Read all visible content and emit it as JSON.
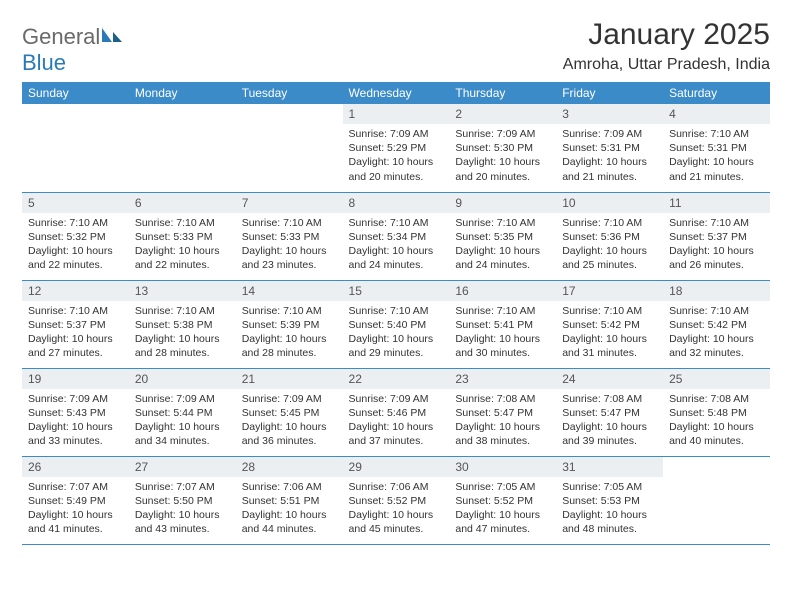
{
  "logo": {
    "general": "General",
    "blue": "Blue"
  },
  "title": "January 2025",
  "location": "Amroha, Uttar Pradesh, India",
  "colors": {
    "header_bg": "#3b8bc8",
    "header_text": "#ffffff",
    "daynum_bg": "#eceff1",
    "border": "#3b8bc8",
    "logo_gray": "#6a6a6a",
    "logo_blue": "#2a7ab9"
  },
  "weekdays": [
    "Sunday",
    "Monday",
    "Tuesday",
    "Wednesday",
    "Thursday",
    "Friday",
    "Saturday"
  ],
  "weeks": [
    [
      {
        "num": "",
        "sunrise": "",
        "sunset": "",
        "daylight": ""
      },
      {
        "num": "",
        "sunrise": "",
        "sunset": "",
        "daylight": ""
      },
      {
        "num": "",
        "sunrise": "",
        "sunset": "",
        "daylight": ""
      },
      {
        "num": "1",
        "sunrise": "Sunrise: 7:09 AM",
        "sunset": "Sunset: 5:29 PM",
        "daylight": "Daylight: 10 hours and 20 minutes."
      },
      {
        "num": "2",
        "sunrise": "Sunrise: 7:09 AM",
        "sunset": "Sunset: 5:30 PM",
        "daylight": "Daylight: 10 hours and 20 minutes."
      },
      {
        "num": "3",
        "sunrise": "Sunrise: 7:09 AM",
        "sunset": "Sunset: 5:31 PM",
        "daylight": "Daylight: 10 hours and 21 minutes."
      },
      {
        "num": "4",
        "sunrise": "Sunrise: 7:10 AM",
        "sunset": "Sunset: 5:31 PM",
        "daylight": "Daylight: 10 hours and 21 minutes."
      }
    ],
    [
      {
        "num": "5",
        "sunrise": "Sunrise: 7:10 AM",
        "sunset": "Sunset: 5:32 PM",
        "daylight": "Daylight: 10 hours and 22 minutes."
      },
      {
        "num": "6",
        "sunrise": "Sunrise: 7:10 AM",
        "sunset": "Sunset: 5:33 PM",
        "daylight": "Daylight: 10 hours and 22 minutes."
      },
      {
        "num": "7",
        "sunrise": "Sunrise: 7:10 AM",
        "sunset": "Sunset: 5:33 PM",
        "daylight": "Daylight: 10 hours and 23 minutes."
      },
      {
        "num": "8",
        "sunrise": "Sunrise: 7:10 AM",
        "sunset": "Sunset: 5:34 PM",
        "daylight": "Daylight: 10 hours and 24 minutes."
      },
      {
        "num": "9",
        "sunrise": "Sunrise: 7:10 AM",
        "sunset": "Sunset: 5:35 PM",
        "daylight": "Daylight: 10 hours and 24 minutes."
      },
      {
        "num": "10",
        "sunrise": "Sunrise: 7:10 AM",
        "sunset": "Sunset: 5:36 PM",
        "daylight": "Daylight: 10 hours and 25 minutes."
      },
      {
        "num": "11",
        "sunrise": "Sunrise: 7:10 AM",
        "sunset": "Sunset: 5:37 PM",
        "daylight": "Daylight: 10 hours and 26 minutes."
      }
    ],
    [
      {
        "num": "12",
        "sunrise": "Sunrise: 7:10 AM",
        "sunset": "Sunset: 5:37 PM",
        "daylight": "Daylight: 10 hours and 27 minutes."
      },
      {
        "num": "13",
        "sunrise": "Sunrise: 7:10 AM",
        "sunset": "Sunset: 5:38 PM",
        "daylight": "Daylight: 10 hours and 28 minutes."
      },
      {
        "num": "14",
        "sunrise": "Sunrise: 7:10 AM",
        "sunset": "Sunset: 5:39 PM",
        "daylight": "Daylight: 10 hours and 28 minutes."
      },
      {
        "num": "15",
        "sunrise": "Sunrise: 7:10 AM",
        "sunset": "Sunset: 5:40 PM",
        "daylight": "Daylight: 10 hours and 29 minutes."
      },
      {
        "num": "16",
        "sunrise": "Sunrise: 7:10 AM",
        "sunset": "Sunset: 5:41 PM",
        "daylight": "Daylight: 10 hours and 30 minutes."
      },
      {
        "num": "17",
        "sunrise": "Sunrise: 7:10 AM",
        "sunset": "Sunset: 5:42 PM",
        "daylight": "Daylight: 10 hours and 31 minutes."
      },
      {
        "num": "18",
        "sunrise": "Sunrise: 7:10 AM",
        "sunset": "Sunset: 5:42 PM",
        "daylight": "Daylight: 10 hours and 32 minutes."
      }
    ],
    [
      {
        "num": "19",
        "sunrise": "Sunrise: 7:09 AM",
        "sunset": "Sunset: 5:43 PM",
        "daylight": "Daylight: 10 hours and 33 minutes."
      },
      {
        "num": "20",
        "sunrise": "Sunrise: 7:09 AM",
        "sunset": "Sunset: 5:44 PM",
        "daylight": "Daylight: 10 hours and 34 minutes."
      },
      {
        "num": "21",
        "sunrise": "Sunrise: 7:09 AM",
        "sunset": "Sunset: 5:45 PM",
        "daylight": "Daylight: 10 hours and 36 minutes."
      },
      {
        "num": "22",
        "sunrise": "Sunrise: 7:09 AM",
        "sunset": "Sunset: 5:46 PM",
        "daylight": "Daylight: 10 hours and 37 minutes."
      },
      {
        "num": "23",
        "sunrise": "Sunrise: 7:08 AM",
        "sunset": "Sunset: 5:47 PM",
        "daylight": "Daylight: 10 hours and 38 minutes."
      },
      {
        "num": "24",
        "sunrise": "Sunrise: 7:08 AM",
        "sunset": "Sunset: 5:47 PM",
        "daylight": "Daylight: 10 hours and 39 minutes."
      },
      {
        "num": "25",
        "sunrise": "Sunrise: 7:08 AM",
        "sunset": "Sunset: 5:48 PM",
        "daylight": "Daylight: 10 hours and 40 minutes."
      }
    ],
    [
      {
        "num": "26",
        "sunrise": "Sunrise: 7:07 AM",
        "sunset": "Sunset: 5:49 PM",
        "daylight": "Daylight: 10 hours and 41 minutes."
      },
      {
        "num": "27",
        "sunrise": "Sunrise: 7:07 AM",
        "sunset": "Sunset: 5:50 PM",
        "daylight": "Daylight: 10 hours and 43 minutes."
      },
      {
        "num": "28",
        "sunrise": "Sunrise: 7:06 AM",
        "sunset": "Sunset: 5:51 PM",
        "daylight": "Daylight: 10 hours and 44 minutes."
      },
      {
        "num": "29",
        "sunrise": "Sunrise: 7:06 AM",
        "sunset": "Sunset: 5:52 PM",
        "daylight": "Daylight: 10 hours and 45 minutes."
      },
      {
        "num": "30",
        "sunrise": "Sunrise: 7:05 AM",
        "sunset": "Sunset: 5:52 PM",
        "daylight": "Daylight: 10 hours and 47 minutes."
      },
      {
        "num": "31",
        "sunrise": "Sunrise: 7:05 AM",
        "sunset": "Sunset: 5:53 PM",
        "daylight": "Daylight: 10 hours and 48 minutes."
      },
      {
        "num": "",
        "sunrise": "",
        "sunset": "",
        "daylight": ""
      }
    ]
  ]
}
